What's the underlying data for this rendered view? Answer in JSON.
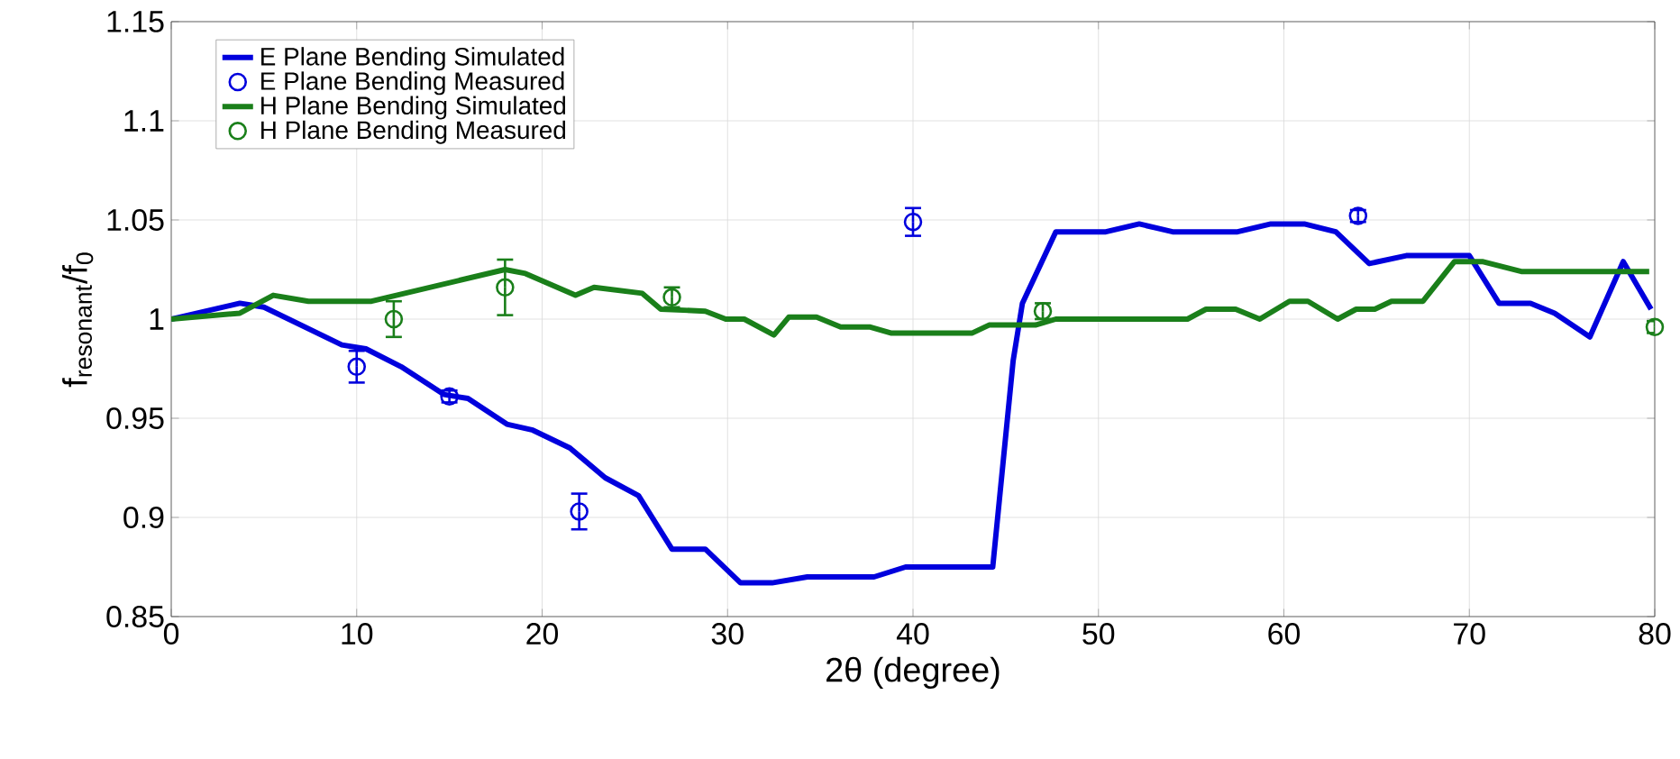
{
  "chart_data": {
    "type": "line",
    "xlabel": "2θ (degree)",
    "ylabel": "f$_{resonant}$/f$_{0}$",
    "xlim": [
      0,
      80
    ],
    "ylim": [
      0.85,
      1.15
    ],
    "xticks": [
      0,
      10,
      20,
      30,
      40,
      50,
      60,
      70,
      80
    ],
    "yticks": [
      0.85,
      0.9,
      0.95,
      1,
      1.05,
      1.1,
      1.15
    ],
    "grid": true,
    "legend": "top left",
    "series": [
      {
        "name": "E Plane Bending Simulated",
        "color": "#0000dd",
        "marker": "none",
        "x": [
          0,
          3.7,
          5,
          9.2,
          10.5,
          12.4,
          14.7,
          16,
          18.1,
          19.5,
          21.5,
          23.4,
          25.2,
          27,
          28.8,
          30.7,
          32.4,
          34.3,
          37.9,
          39.6,
          44.3,
          45.4,
          45.9,
          47.7,
          50.4,
          52.2,
          54,
          57.5,
          59.3,
          61.1,
          62.8,
          64.6,
          66.6,
          70,
          71.6,
          73.3,
          74.6,
          76.5,
          78.3,
          79.8
        ],
        "values": [
          1.0,
          1.008,
          1.006,
          0.987,
          0.985,
          0.976,
          0.962,
          0.96,
          0.947,
          0.944,
          0.935,
          0.92,
          0.911,
          0.884,
          0.884,
          0.867,
          0.867,
          0.87,
          0.87,
          0.875,
          0.875,
          0.979,
          1.008,
          1.044,
          1.044,
          1.048,
          1.044,
          1.044,
          1.048,
          1.048,
          1.044,
          1.028,
          1.032,
          1.032,
          1.008,
          1.008,
          1.003,
          0.991,
          1.029,
          1.005
        ]
      },
      {
        "name": "E Plane Bending Measured",
        "type": "scatter",
        "color": "#0000dd",
        "marker": "circle",
        "x": [
          10,
          15,
          22,
          40,
          64
        ],
        "values": [
          0.976,
          0.961,
          0.903,
          1.049,
          1.052
        ],
        "errors": [
          0.008,
          0.003,
          0.009,
          0.007,
          0.003
        ]
      },
      {
        "name": "H Plane Bending Simulated",
        "color": "#1a7f1a",
        "marker": "none",
        "x": [
          0,
          3.7,
          5.5,
          7.4,
          10.8,
          18,
          19.1,
          21.8,
          22.8,
          25.4,
          26.4,
          28.8,
          29.9,
          30.9,
          32.5,
          33.3,
          34.8,
          36.1,
          37.7,
          38.8,
          43.2,
          44.1,
          46.6,
          47.7,
          54.8,
          55.8,
          57.4,
          58.7,
          60.3,
          61.3,
          62.9,
          63.9,
          64.9,
          65.8,
          67.5,
          69.2,
          70.7,
          72.8,
          79.7
        ],
        "values": [
          1.0,
          1.003,
          1.012,
          1.009,
          1.009,
          1.025,
          1.023,
          1.012,
          1.016,
          1.013,
          1.005,
          1.004,
          1.0,
          1.0,
          0.992,
          1.001,
          1.001,
          0.996,
          0.996,
          0.993,
          0.993,
          0.997,
          0.997,
          1.0,
          1.0,
          1.005,
          1.005,
          1.0,
          1.009,
          1.009,
          1.0,
          1.005,
          1.005,
          1.009,
          1.009,
          1.029,
          1.029,
          1.024,
          1.024
        ]
      },
      {
        "name": "H Plane Bending Measured",
        "type": "scatter",
        "color": "#1a7f1a",
        "marker": "circle",
        "x": [
          12,
          18,
          27,
          47,
          80
        ],
        "values": [
          1.0,
          1.016,
          1.011,
          1.004,
          0.996
        ],
        "errors": [
          0.009,
          0.014,
          0.005,
          0.004,
          0.003
        ]
      }
    ]
  }
}
